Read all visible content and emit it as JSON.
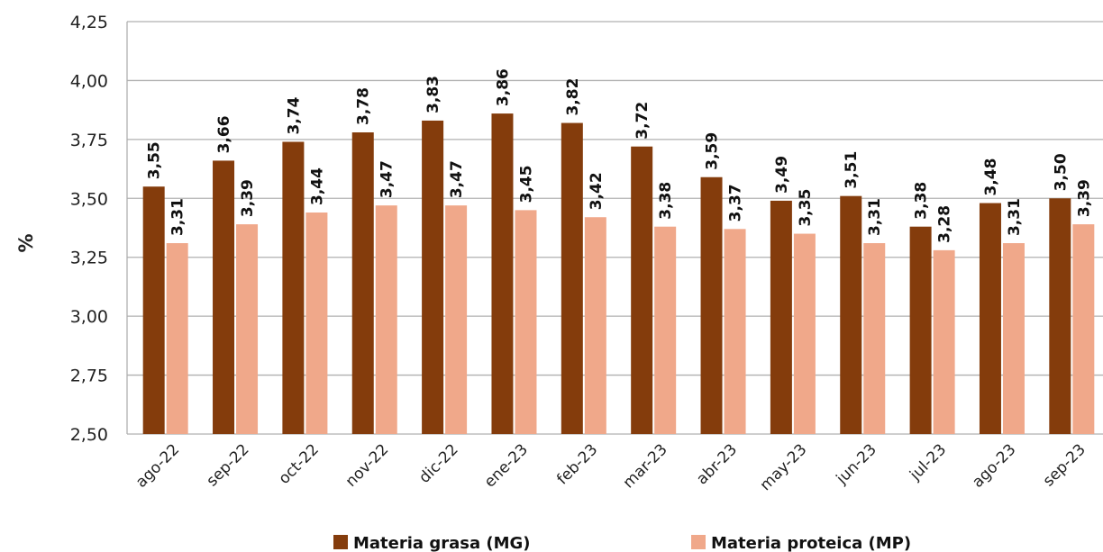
{
  "chart_data": {
    "type": "bar",
    "categories": [
      "ago-22",
      "sep-22",
      "oct-22",
      "nov-22",
      "dic-22",
      "ene-23",
      "feb-23",
      "mar-23",
      "abr-23",
      "may-23",
      "jun-23",
      "jul-23",
      "ago-23",
      "sep-23"
    ],
    "series": [
      {
        "name": "Materia grasa (MG)",
        "color": "#843c0c",
        "values": [
          3.55,
          3.66,
          3.74,
          3.78,
          3.83,
          3.86,
          3.82,
          3.72,
          3.59,
          3.49,
          3.51,
          3.38,
          3.48,
          3.5
        ],
        "labels": [
          "3,55",
          "3,66",
          "3,74",
          "3,78",
          "3,83",
          "3,86",
          "3,82",
          "3,72",
          "3,59",
          "3,49",
          "3,51",
          "3,38",
          "3,48",
          "3,50"
        ]
      },
      {
        "name": "Materia proteica (MP)",
        "color": "#f0a88a",
        "values": [
          3.31,
          3.39,
          3.44,
          3.47,
          3.47,
          3.45,
          3.42,
          3.38,
          3.37,
          3.35,
          3.31,
          3.28,
          3.31,
          3.39
        ],
        "labels": [
          "3,31",
          "3,39",
          "3,44",
          "3,47",
          "3,47",
          "3,45",
          "3,42",
          "3,38",
          "3,37",
          "3,35",
          "3,31",
          "3,28",
          "3,31",
          "3,39"
        ]
      }
    ],
    "ylim": [
      2.5,
      4.25
    ],
    "yticks": [
      2.5,
      2.75,
      3.0,
      3.25,
      3.5,
      3.75,
      4.0,
      4.25
    ],
    "ytick_labels": [
      "2,50",
      "2,75",
      "3,00",
      "3,25",
      "3,50",
      "3,75",
      "4,00",
      "4,25"
    ],
    "ylabel": "%",
    "xlabel": "",
    "grid": true,
    "legend": "bottom",
    "gridline_color": "#b0b0b0"
  }
}
